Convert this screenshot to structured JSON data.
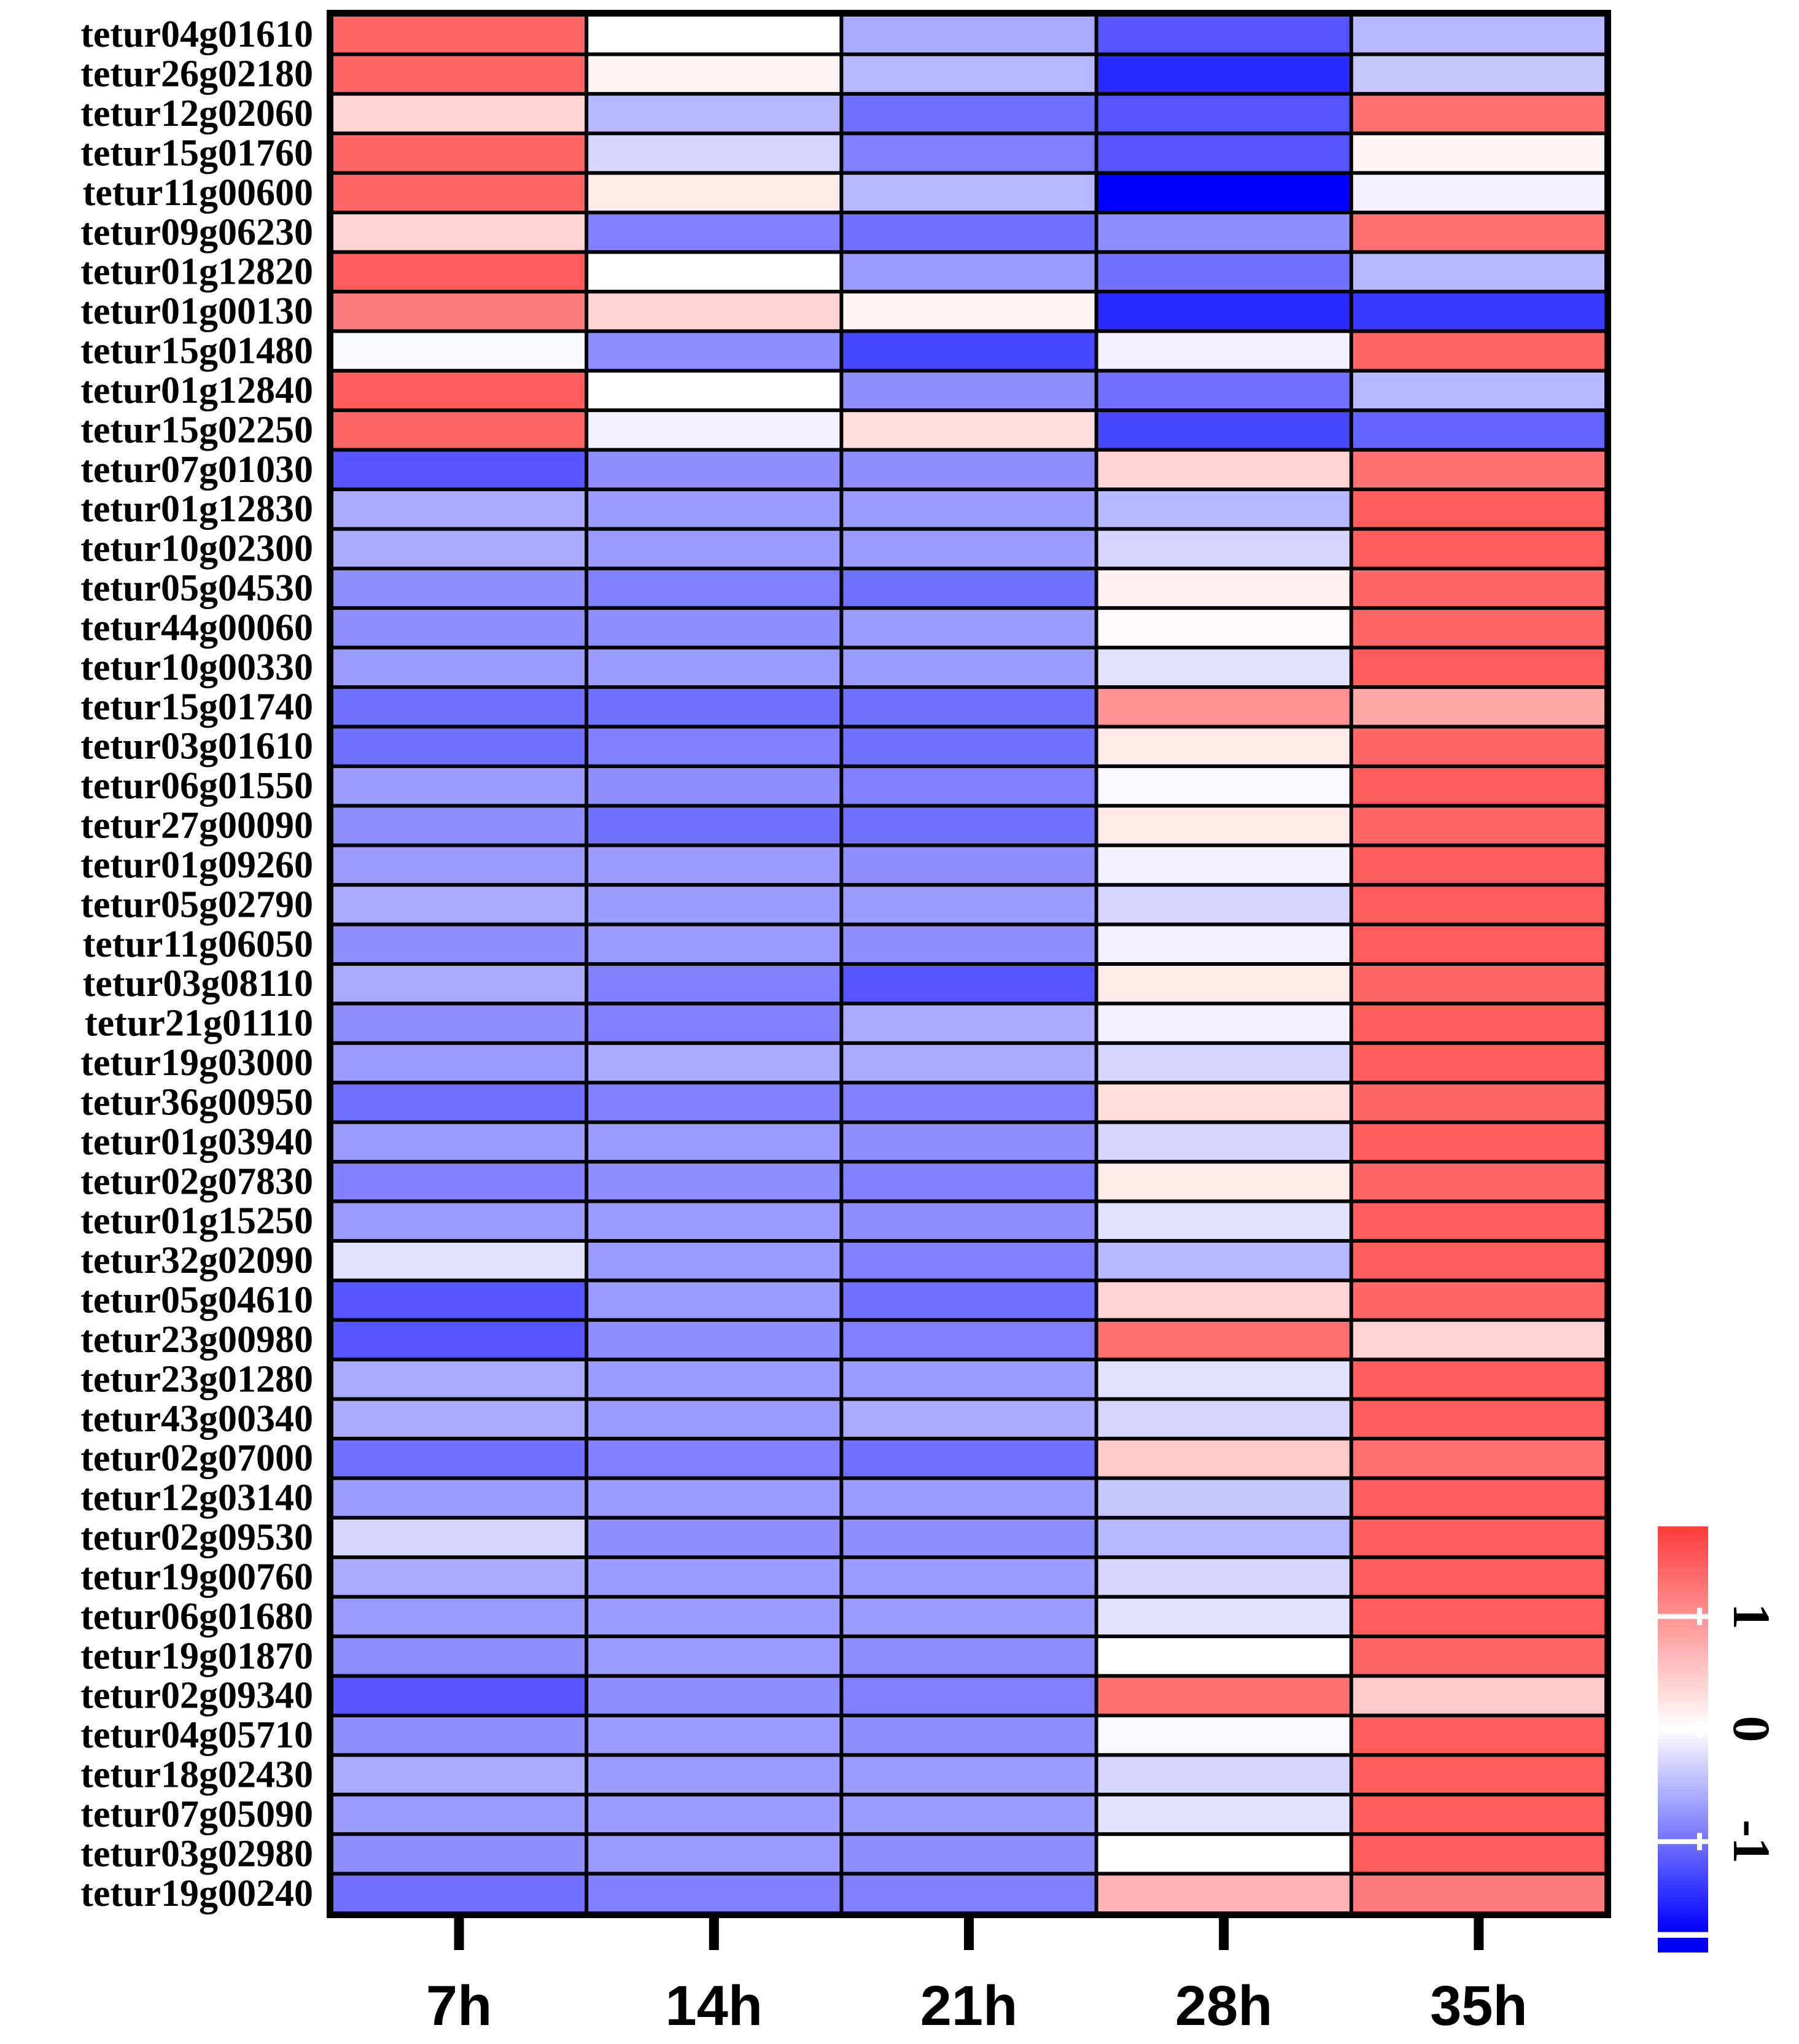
{
  "chart_data": {
    "type": "heatmap",
    "title": "",
    "xlabel": "",
    "ylabel": "",
    "columns": [
      "7h",
      "14h",
      "21h",
      "28h",
      "35h"
    ],
    "rows": [
      "tetur04g01610",
      "tetur26g02180",
      "tetur12g02060",
      "tetur15g01760",
      "tetur11g00600",
      "tetur09g06230",
      "tetur01g12820",
      "tetur01g00130",
      "tetur15g01480",
      "tetur01g12840",
      "tetur15g02250",
      "tetur07g01030",
      "tetur01g12830",
      "tetur10g02300",
      "tetur05g04530",
      "tetur44g00060",
      "tetur10g00330",
      "tetur15g01740",
      "tetur03g01610",
      "tetur06g01550",
      "tetur27g00090",
      "tetur01g09260",
      "tetur05g02790",
      "tetur11g06050",
      "tetur03g08110",
      "tetur21g01110",
      "tetur19g03000",
      "tetur36g00950",
      "tetur01g03940",
      "tetur02g07830",
      "tetur01g15250",
      "tetur32g02090",
      "tetur05g04610",
      "tetur23g00980",
      "tetur23g01280",
      "tetur43g00340",
      "tetur02g07000",
      "tetur12g03140",
      "tetur02g09530",
      "tetur19g00760",
      "tetur06g01680",
      "tetur19g01870",
      "tetur02g09340",
      "tetur04g05710",
      "tetur18g02430",
      "tetur07g05090",
      "tetur03g02980",
      "tetur19g00240"
    ],
    "values": [
      [
        1.4,
        0.0,
        -0.6,
        -1.2,
        -0.5
      ],
      [
        1.4,
        0.1,
        -0.5,
        -1.5,
        -0.4
      ],
      [
        0.4,
        -0.5,
        -1.0,
        -1.2,
        1.3
      ],
      [
        1.4,
        -0.3,
        -0.9,
        -1.2,
        0.1
      ],
      [
        1.4,
        0.2,
        -0.5,
        -1.8,
        -0.1
      ],
      [
        0.4,
        -0.9,
        -1.0,
        -0.8,
        1.3
      ],
      [
        1.5,
        0.0,
        -0.7,
        -1.0,
        -0.5
      ],
      [
        1.2,
        0.4,
        0.1,
        -1.5,
        -1.4
      ],
      [
        -0.05,
        -0.8,
        -1.3,
        -0.1,
        1.4
      ],
      [
        1.5,
        0.0,
        -0.8,
        -1.0,
        -0.5
      ],
      [
        1.4,
        -0.1,
        0.3,
        -1.3,
        -1.1
      ],
      [
        -1.2,
        -0.8,
        -0.8,
        0.4,
        1.3
      ],
      [
        -0.6,
        -0.7,
        -0.7,
        -0.5,
        1.5
      ],
      [
        -0.6,
        -0.7,
        -0.7,
        -0.3,
        1.5
      ],
      [
        -0.8,
        -0.9,
        -1.0,
        0.15,
        1.4
      ],
      [
        -0.8,
        -0.8,
        -0.7,
        0.05,
        1.4
      ],
      [
        -0.7,
        -0.7,
        -0.7,
        -0.2,
        1.5
      ],
      [
        -1.0,
        -1.0,
        -1.0,
        1.0,
        0.8
      ],
      [
        -1.0,
        -0.9,
        -1.0,
        0.2,
        1.4
      ],
      [
        -0.7,
        -0.8,
        -0.9,
        -0.05,
        1.5
      ],
      [
        -0.8,
        -1.0,
        -1.0,
        0.2,
        1.4
      ],
      [
        -0.7,
        -0.7,
        -0.8,
        -0.1,
        1.5
      ],
      [
        -0.6,
        -0.7,
        -0.7,
        -0.3,
        1.5
      ],
      [
        -0.8,
        -0.7,
        -0.8,
        -0.1,
        1.5
      ],
      [
        -0.6,
        -0.9,
        -1.2,
        0.2,
        1.4
      ],
      [
        -0.8,
        -0.9,
        -0.6,
        -0.1,
        1.5
      ],
      [
        -0.7,
        -0.6,
        -0.6,
        -0.3,
        1.5
      ],
      [
        -1.0,
        -0.9,
        -0.9,
        0.3,
        1.4
      ],
      [
        -0.7,
        -0.7,
        -0.8,
        -0.3,
        1.5
      ],
      [
        -0.9,
        -0.8,
        -0.9,
        0.2,
        1.4
      ],
      [
        -0.7,
        -0.7,
        -0.8,
        -0.2,
        1.5
      ],
      [
        -0.2,
        -0.7,
        -0.9,
        -0.5,
        1.5
      ],
      [
        -1.2,
        -0.7,
        -1.0,
        0.4,
        1.4
      ],
      [
        -1.2,
        -0.8,
        -0.9,
        1.3,
        0.4
      ],
      [
        -0.6,
        -0.7,
        -0.7,
        -0.2,
        1.5
      ],
      [
        -0.6,
        -0.7,
        -0.6,
        -0.3,
        1.5
      ],
      [
        -1.0,
        -0.9,
        -1.0,
        0.5,
        1.3
      ],
      [
        -0.7,
        -0.7,
        -0.7,
        -0.4,
        1.5
      ],
      [
        -0.3,
        -0.8,
        -0.8,
        -0.5,
        1.5
      ],
      [
        -0.6,
        -0.7,
        -0.7,
        -0.3,
        1.5
      ],
      [
        -0.7,
        -0.7,
        -0.7,
        -0.2,
        1.5
      ],
      [
        -0.8,
        -0.7,
        -0.8,
        0.0,
        1.4
      ],
      [
        -1.2,
        -0.8,
        -0.9,
        1.3,
        0.5
      ],
      [
        -0.8,
        -0.7,
        -0.8,
        -0.05,
        1.5
      ],
      [
        -0.6,
        -0.7,
        -0.7,
        -0.3,
        1.5
      ],
      [
        -0.7,
        -0.7,
        -0.7,
        -0.2,
        1.5
      ],
      [
        -0.8,
        -0.7,
        -0.8,
        0.0,
        1.5
      ],
      [
        -1.0,
        -0.9,
        -0.9,
        0.7,
        1.2
      ]
    ],
    "color_scale": {
      "min": -1.8,
      "max": 1.8,
      "low_color": "#0000ff",
      "mid_color": "#ffffff",
      "high_color": "#ff3b3b"
    },
    "legend": {
      "position": "right-bottom",
      "ticks": [
        -1,
        0,
        1
      ],
      "tick_labels": [
        "-1",
        "0",
        "1"
      ]
    }
  }
}
